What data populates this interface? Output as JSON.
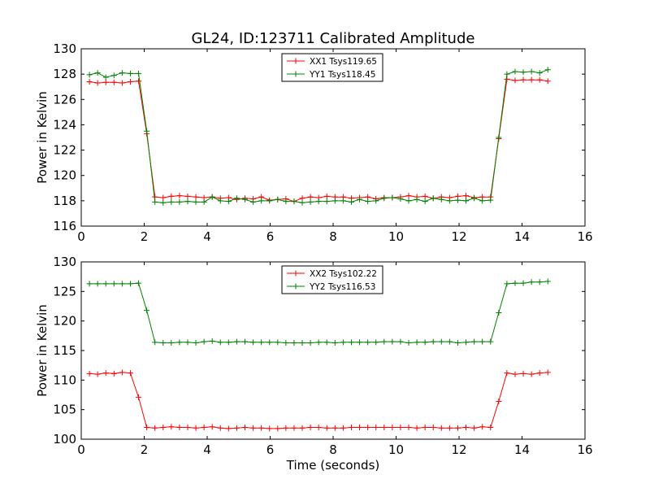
{
  "chart_data": [
    {
      "type": "line",
      "title": "GL24, ID:123711 Calibrated Amplitude",
      "xlabel": "",
      "ylabel": "Power in Kelvin",
      "xlim": [
        0,
        16
      ],
      "ylim": [
        116,
        130
      ],
      "xticks": [
        0,
        2,
        4,
        6,
        8,
        10,
        12,
        14,
        16
      ],
      "yticks": [
        116,
        118,
        120,
        122,
        124,
        126,
        128,
        130
      ],
      "legend": "top-center",
      "x": [
        0.26,
        0.52,
        0.78,
        1.04,
        1.3,
        1.56,
        1.82,
        2.08,
        2.34,
        2.6,
        2.86,
        3.12,
        3.38,
        3.64,
        3.9,
        4.16,
        4.42,
        4.68,
        4.94,
        5.2,
        5.46,
        5.72,
        5.98,
        6.24,
        6.5,
        6.76,
        7.02,
        7.28,
        7.54,
        7.8,
        8.06,
        8.32,
        8.58,
        8.84,
        9.1,
        9.36,
        9.62,
        9.88,
        10.14,
        10.4,
        10.66,
        10.92,
        11.18,
        11.44,
        11.7,
        11.96,
        12.22,
        12.48,
        12.74,
        13.0,
        13.26,
        13.52,
        13.78,
        14.04,
        14.3,
        14.56,
        14.82
      ],
      "series": [
        {
          "name": "XX1 Tsys119.65",
          "color": "#ff0000",
          "values": [
            127.4,
            127.3,
            127.35,
            127.35,
            127.3,
            127.4,
            127.45,
            123.3,
            118.3,
            118.25,
            118.35,
            118.4,
            118.35,
            118.3,
            118.25,
            118.3,
            118.2,
            118.25,
            118.1,
            118.2,
            118.15,
            118.3,
            118.05,
            118.1,
            118.15,
            117.95,
            118.2,
            118.3,
            118.25,
            118.35,
            118.3,
            118.3,
            118.2,
            118.25,
            118.3,
            118.15,
            118.25,
            118.25,
            118.3,
            118.4,
            118.3,
            118.35,
            118.2,
            118.3,
            118.25,
            118.35,
            118.4,
            118.25,
            118.3,
            118.3,
            122.9,
            127.6,
            127.5,
            127.55,
            127.55,
            127.55,
            127.45
          ]
        },
        {
          "name": "YY1 Tsys118.45",
          "color": "#008000",
          "values": [
            127.95,
            128.1,
            127.75,
            127.9,
            128.1,
            128.05,
            128.05,
            123.5,
            117.9,
            117.85,
            117.9,
            117.9,
            117.95,
            117.9,
            117.9,
            118.3,
            118.0,
            117.95,
            118.2,
            118.1,
            117.9,
            118.0,
            118.0,
            118.1,
            117.95,
            117.95,
            117.85,
            117.9,
            117.95,
            117.95,
            118.0,
            118.0,
            117.9,
            118.1,
            117.95,
            118.0,
            118.2,
            118.25,
            118.15,
            118.0,
            118.1,
            117.95,
            118.2,
            118.1,
            118.0,
            118.05,
            118.0,
            118.2,
            118.0,
            118.05,
            123.0,
            128.0,
            128.2,
            128.15,
            128.2,
            128.1,
            128.35
          ]
        }
      ]
    },
    {
      "type": "line",
      "title": "",
      "xlabel": "Time (seconds)",
      "ylabel": "Power in Kelvin",
      "xlim": [
        0,
        16
      ],
      "ylim": [
        100,
        130
      ],
      "xticks": [
        0,
        2,
        4,
        6,
        8,
        10,
        12,
        14,
        16
      ],
      "yticks": [
        100,
        105,
        110,
        115,
        120,
        125,
        130
      ],
      "legend": "top-center",
      "x": [
        0.26,
        0.52,
        0.78,
        1.04,
        1.3,
        1.56,
        1.82,
        2.08,
        2.34,
        2.6,
        2.86,
        3.12,
        3.38,
        3.64,
        3.9,
        4.16,
        4.42,
        4.68,
        4.94,
        5.2,
        5.46,
        5.72,
        5.98,
        6.24,
        6.5,
        6.76,
        7.02,
        7.28,
        7.54,
        7.8,
        8.06,
        8.32,
        8.58,
        8.84,
        9.1,
        9.36,
        9.62,
        9.88,
        10.14,
        10.4,
        10.66,
        10.92,
        11.18,
        11.44,
        11.7,
        11.96,
        12.22,
        12.48,
        12.74,
        13.0,
        13.26,
        13.52,
        13.78,
        14.04,
        14.3,
        14.56,
        14.82
      ],
      "series": [
        {
          "name": "XX2 Tsys102.22",
          "color": "#ff0000",
          "values": [
            111.1,
            111.0,
            111.2,
            111.1,
            111.3,
            111.2,
            107.1,
            102.0,
            101.9,
            102.0,
            102.1,
            102.0,
            102.0,
            101.9,
            102.0,
            102.1,
            101.9,
            101.8,
            101.9,
            102.0,
            101.9,
            101.9,
            101.8,
            101.8,
            101.9,
            101.9,
            101.9,
            102.0,
            102.0,
            101.9,
            101.9,
            101.9,
            102.0,
            102.0,
            102.0,
            102.0,
            102.0,
            102.0,
            102.0,
            102.0,
            101.9,
            102.0,
            102.0,
            101.9,
            101.9,
            101.9,
            102.0,
            101.9,
            102.1,
            102.0,
            106.4,
            111.2,
            111.0,
            111.1,
            111.0,
            111.2,
            111.3
          ]
        },
        {
          "name": "YY2 Tsys116.53",
          "color": "#008000",
          "values": [
            126.3,
            126.3,
            126.3,
            126.3,
            126.3,
            126.3,
            126.4,
            121.8,
            116.4,
            116.3,
            116.3,
            116.4,
            116.4,
            116.3,
            116.5,
            116.6,
            116.4,
            116.4,
            116.5,
            116.5,
            116.4,
            116.4,
            116.4,
            116.4,
            116.3,
            116.3,
            116.3,
            116.3,
            116.4,
            116.4,
            116.3,
            116.4,
            116.4,
            116.4,
            116.4,
            116.4,
            116.5,
            116.5,
            116.5,
            116.3,
            116.4,
            116.4,
            116.5,
            116.5,
            116.5,
            116.3,
            116.4,
            116.5,
            116.5,
            116.5,
            121.4,
            126.3,
            126.4,
            126.4,
            126.6,
            126.6,
            126.7
          ]
        }
      ]
    }
  ]
}
